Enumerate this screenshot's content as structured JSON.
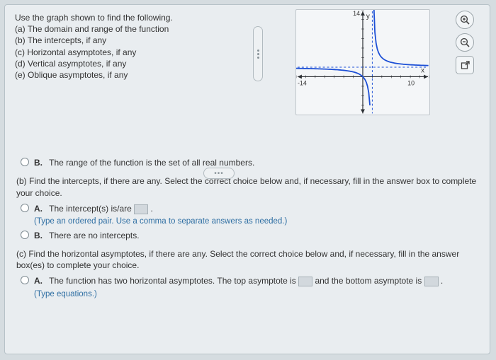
{
  "header": {
    "intro": "Use the graph shown to find the following.",
    "parts": [
      "(a) The domain and range of the function",
      "(b) The intercepts, if any",
      "(c) Horizontal asymptotes, if any",
      "(d) Vertical asymptotes, if any",
      "(e) Oblique asymptotes, if any"
    ]
  },
  "graph": {
    "xlim": [
      -14,
      14
    ],
    "ylim": [
      -8,
      14
    ],
    "x_label": "x",
    "y_label": "y",
    "x_tick": "-14",
    "x_tick2": "10",
    "y_tick": "14",
    "axis_color": "#2b2f33",
    "curve_color": "#1c4fd6",
    "asym_color": "#1c4fd6",
    "grid_color": "#c0c6cb",
    "v_asym_x": 2,
    "h_asym_y": 2,
    "background": "#f4f6f8"
  },
  "more": "•••",
  "range_option": {
    "letter": "B.",
    "text": "The range of the function is the set of all real numbers."
  },
  "partB": {
    "stem": "(b) Find the intercepts, if there are any. Select the correct choice below and, if necessary, fill in the answer box to complete your choice.",
    "A": {
      "letter": "A.",
      "text1": "The intercept(s) is/are",
      "sub": "(Type an ordered pair. Use a comma to separate answers as needed.)"
    },
    "B": {
      "letter": "B.",
      "text": "There are no intercepts."
    }
  },
  "partC": {
    "stem": "(c) Find the horizontal asymptotes, if there are any. Select the correct choice below and, if necessary, fill in the answer box(es) to complete your choice.",
    "A": {
      "letter": "A.",
      "text1": "The function has two horizontal asymptotes. The top asymptote is",
      "text2": "and the bottom asymptote is",
      "sub": "(Type equations.)"
    }
  },
  "tools": {
    "zoom_in": "⊕",
    "zoom_out": "⊖",
    "popout": "⇱"
  }
}
